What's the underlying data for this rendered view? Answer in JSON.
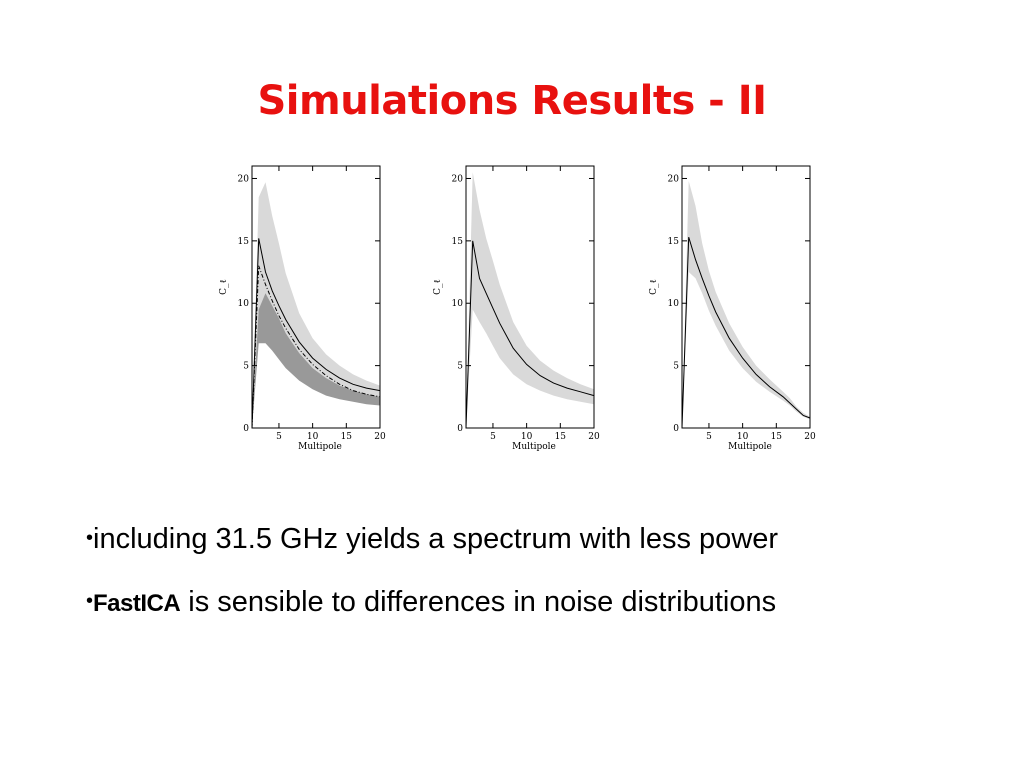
{
  "slide": {
    "title": "Simulations Results - II",
    "bullets": [
      {
        "bullet": "•",
        "bold": "",
        "text": "including 31.5 GHz yields a spectrum with less power"
      },
      {
        "bullet": "•",
        "bold": "FastICA",
        "text": " is sensible to differences in noise distributions"
      }
    ]
  },
  "chart_data": [
    {
      "type": "area",
      "xlabel": "Multipole",
      "ylabel": "C_ℓ",
      "xlim": [
        1,
        20
      ],
      "ylim": [
        0,
        21
      ],
      "xticks": [
        5,
        10,
        15,
        20
      ],
      "yticks": [
        0,
        5,
        10,
        15,
        20
      ],
      "colors": {
        "light_band": "#d9d9d9",
        "dark_band": "#999999",
        "line": "#000000"
      },
      "series": [
        {
          "kind": "band",
          "color": "light_band",
          "x": [
            1,
            2,
            3,
            4,
            5,
            6,
            8,
            10,
            12,
            14,
            16,
            18,
            20
          ],
          "low": [
            0,
            8.5,
            10.0,
            9.0,
            7.8,
            6.6,
            5.2,
            4.2,
            3.6,
            3.1,
            2.8,
            2.5,
            2.3
          ],
          "high": [
            0,
            18.5,
            19.7,
            17.0,
            14.8,
            12.4,
            9.2,
            7.2,
            5.9,
            5.0,
            4.3,
            3.8,
            3.4
          ]
        },
        {
          "kind": "band",
          "color": "dark_band",
          "x": [
            1,
            2,
            3,
            4,
            5,
            6,
            8,
            10,
            12,
            14,
            16,
            18,
            20
          ],
          "low": [
            0,
            6.8,
            6.8,
            6.2,
            5.5,
            4.8,
            3.8,
            3.1,
            2.6,
            2.3,
            2.1,
            1.9,
            1.8
          ],
          "high": [
            0,
            9.5,
            10.8,
            9.8,
            8.8,
            7.6,
            6.0,
            4.8,
            4.0,
            3.4,
            3.0,
            2.7,
            2.5
          ]
        },
        {
          "kind": "line",
          "style": "solid",
          "x": [
            1,
            2,
            3,
            4,
            5,
            6,
            8,
            10,
            12,
            14,
            16,
            18,
            20
          ],
          "y": [
            0,
            15.2,
            12.5,
            11.0,
            9.8,
            8.7,
            6.9,
            5.6,
            4.7,
            4.0,
            3.5,
            3.2,
            3.0
          ]
        },
        {
          "kind": "line",
          "style": "dashdot",
          "x": [
            1,
            2,
            3,
            4,
            5,
            6,
            8,
            10,
            12,
            14,
            16,
            18,
            20
          ],
          "y": [
            0,
            13.0,
            11.5,
            10.2,
            9.0,
            8.0,
            6.3,
            5.1,
            4.2,
            3.5,
            3.0,
            2.7,
            2.5
          ]
        }
      ]
    },
    {
      "type": "area",
      "xlabel": "Multipole",
      "ylabel": "C_ℓ",
      "xlim": [
        1,
        20
      ],
      "ylim": [
        0,
        21
      ],
      "xticks": [
        5,
        10,
        15,
        20
      ],
      "yticks": [
        0,
        5,
        10,
        15,
        20
      ],
      "colors": {
        "light_band": "#d9d9d9",
        "line": "#000000"
      },
      "series": [
        {
          "kind": "band",
          "color": "light_band",
          "x": [
            1,
            2,
            3,
            4,
            5,
            6,
            8,
            10,
            12,
            14,
            16,
            18,
            20
          ],
          "low": [
            0,
            9.5,
            8.5,
            7.6,
            6.6,
            5.6,
            4.3,
            3.5,
            3.0,
            2.6,
            2.3,
            2.1,
            1.9
          ],
          "high": [
            0,
            20.5,
            17.5,
            15.2,
            13.4,
            11.5,
            8.5,
            6.6,
            5.4,
            4.6,
            4.0,
            3.5,
            3.1
          ]
        },
        {
          "kind": "line",
          "style": "solid",
          "x": [
            1,
            2,
            3,
            4,
            5,
            6,
            8,
            10,
            12,
            14,
            16,
            18,
            20
          ],
          "y": [
            0,
            15.0,
            12.0,
            10.8,
            9.6,
            8.4,
            6.4,
            5.1,
            4.2,
            3.6,
            3.2,
            2.9,
            2.6
          ]
        }
      ]
    },
    {
      "type": "area",
      "xlabel": "Multipole",
      "ylabel": "C_ℓ",
      "xlim": [
        1,
        20
      ],
      "ylim": [
        0,
        21
      ],
      "xticks": [
        5,
        10,
        15,
        20
      ],
      "yticks": [
        0,
        5,
        10,
        15,
        20
      ],
      "colors": {
        "light_band": "#d9d9d9",
        "line": "#000000"
      },
      "series": [
        {
          "kind": "band",
          "color": "light_band",
          "x": [
            1,
            2,
            3,
            4,
            5,
            6,
            8,
            10,
            12,
            14,
            16,
            17,
            18,
            19,
            20
          ],
          "low": [
            0,
            12.5,
            12.0,
            10.8,
            9.4,
            8.2,
            6.2,
            4.8,
            3.7,
            2.9,
            2.2,
            1.8,
            1.3,
            0.9,
            0.7
          ],
          "high": [
            0,
            19.8,
            17.8,
            14.8,
            12.6,
            10.9,
            8.4,
            6.5,
            5.0,
            3.9,
            2.9,
            2.4,
            1.7,
            1.2,
            0.9
          ]
        },
        {
          "kind": "line",
          "style": "solid",
          "x": [
            1,
            2,
            3,
            4,
            5,
            6,
            8,
            10,
            12,
            14,
            16,
            17,
            18,
            19,
            20
          ],
          "y": [
            0,
            15.3,
            13.5,
            12.0,
            10.6,
            9.3,
            7.2,
            5.6,
            4.3,
            3.3,
            2.5,
            2.0,
            1.5,
            1.0,
            0.8
          ]
        }
      ]
    }
  ]
}
